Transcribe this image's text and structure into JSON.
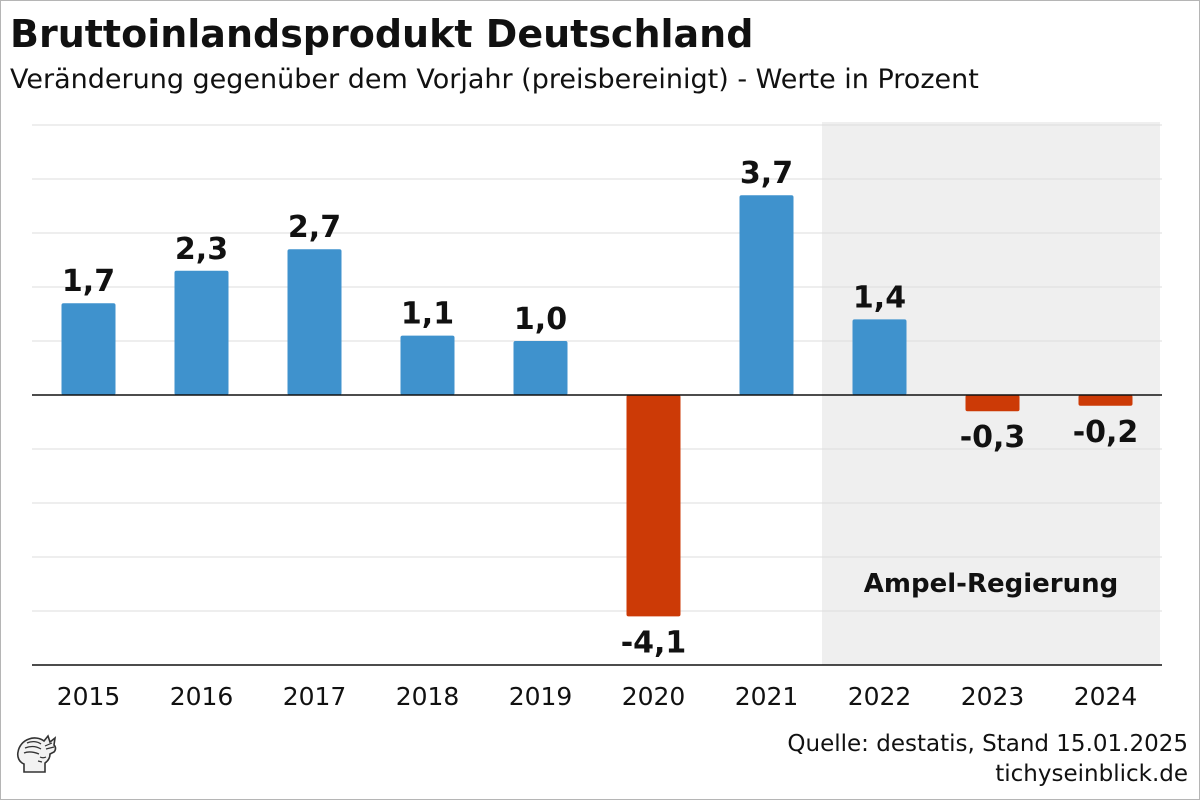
{
  "title": "Bruttoinlandsprodukt Deutschland",
  "subtitle": "Veränderung gegenüber dem Vorjahr (preisbereinigt) - Werte in Prozent",
  "source": {
    "line1": "Quelle: destatis, Stand 15.01.2025",
    "line2": "tichyseinblick.de"
  },
  "logo_icon": "mercury-head-logo-icon",
  "colors": {
    "positive": "#3f92cd",
    "negative": "#cc3a06",
    "shade": "#efefef",
    "grid": "#dddddd",
    "axis": "#111111"
  },
  "chart_data": {
    "type": "bar",
    "categories": [
      "2015",
      "2016",
      "2017",
      "2018",
      "2019",
      "2020",
      "2021",
      "2022",
      "2023",
      "2024"
    ],
    "values": [
      1.7,
      2.3,
      2.7,
      1.1,
      1.0,
      -4.1,
      3.7,
      1.4,
      -0.3,
      -0.2
    ],
    "value_labels": [
      "1,7",
      "2,3",
      "2,7",
      "1,1",
      "1,0",
      "-4,1",
      "3,7",
      "1,4",
      "-0,3",
      "-0,2"
    ],
    "ylim": [
      -5,
      5
    ],
    "y_gridlines": [
      -5,
      -4,
      -3,
      -2,
      -1,
      0,
      1,
      2,
      3,
      4,
      5
    ],
    "ytick_labels_shown": false,
    "grid": true,
    "legend": null,
    "annotations": [
      {
        "text": "Ampel-Regierung",
        "shade_from": "2022",
        "shade_to": "2024"
      }
    ]
  }
}
